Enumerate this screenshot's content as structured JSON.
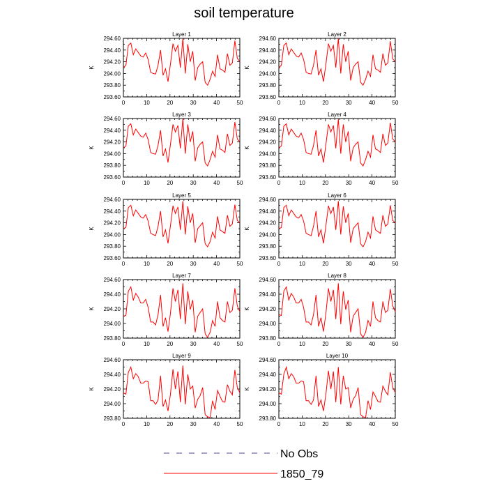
{
  "title": "soil temperature",
  "colors": {
    "series": "#ff0000",
    "obs": "#4a4a9a"
  },
  "legend": {
    "placement": "bottom",
    "entries": [
      {
        "label": "No Obs",
        "style": "dashed",
        "color": "#4a4a9a"
      },
      {
        "label": "1850_79",
        "style": "solid",
        "color": "#ff0000"
      }
    ]
  },
  "chart_data": [
    {
      "type": "line",
      "title": "Layer 1",
      "ylabel": "K",
      "xlim": [
        0,
        50
      ],
      "ylim": [
        293.6,
        294.6
      ],
      "xticks": [
        0,
        10,
        20,
        30,
        40,
        50
      ],
      "yticks": [
        293.6,
        293.8,
        294.0,
        294.2,
        294.4,
        294.6
      ],
      "xtick_labels": [
        "0",
        "10",
        "20",
        "30",
        "40",
        "50"
      ],
      "ytick_labels": [
        "293.60",
        "293.80",
        "294.00",
        "294.20",
        "294.40",
        "294.60"
      ],
      "series": [
        {
          "values": [
            294.1,
            294.14,
            294.48,
            294.52,
            294.32,
            294.42,
            294.36,
            294.3,
            294.28,
            294.35,
            294.24,
            294.02,
            294.0,
            293.99,
            294.14,
            294.4,
            293.97,
            294.08,
            293.86,
            294.16,
            294.51,
            294.38,
            294.48,
            294.1,
            294.6,
            294.0,
            294.5,
            294.2,
            294.38,
            293.88,
            294.1,
            294.16,
            294.2,
            293.85,
            293.8,
            293.9,
            294.04,
            293.95,
            294.32,
            294.08,
            294.06,
            294.02,
            294.34,
            294.14,
            294.18,
            294.56,
            294.26,
            294.2
          ]
        }
      ]
    },
    {
      "type": "line",
      "title": "Layer 2",
      "ylabel": "K",
      "xlim": [
        0,
        50
      ],
      "ylim": [
        293.6,
        294.6
      ],
      "xticks": [
        0,
        10,
        20,
        30,
        40,
        50
      ],
      "yticks": [
        293.6,
        293.8,
        294.0,
        294.2,
        294.4,
        294.6
      ],
      "xtick_labels": [
        "0",
        "10",
        "20",
        "30",
        "40",
        "50"
      ],
      "ytick_labels": [
        "293.60",
        "293.80",
        "294.00",
        "294.20",
        "294.40",
        "294.60"
      ],
      "series": [
        {
          "values": [
            294.1,
            294.14,
            294.48,
            294.52,
            294.32,
            294.42,
            294.36,
            294.3,
            294.28,
            294.35,
            294.24,
            294.02,
            294.0,
            293.99,
            294.14,
            294.4,
            293.97,
            294.08,
            293.86,
            294.16,
            294.51,
            294.38,
            294.48,
            294.1,
            294.6,
            294.0,
            294.5,
            294.2,
            294.38,
            293.88,
            294.1,
            294.16,
            294.2,
            293.85,
            293.8,
            293.9,
            294.04,
            293.95,
            294.32,
            294.08,
            294.06,
            294.02,
            294.34,
            294.14,
            294.18,
            294.55,
            294.25,
            294.2
          ]
        }
      ]
    },
    {
      "type": "line",
      "title": "Layer 3",
      "ylabel": "K",
      "xlim": [
        0,
        50
      ],
      "ylim": [
        293.6,
        294.6
      ],
      "xticks": [
        0,
        10,
        20,
        30,
        40,
        50
      ],
      "yticks": [
        293.6,
        293.8,
        294.0,
        294.2,
        294.4,
        294.6
      ],
      "xtick_labels": [
        "0",
        "10",
        "20",
        "30",
        "40",
        "50"
      ],
      "ytick_labels": [
        "293.60",
        "293.80",
        "294.00",
        "294.20",
        "294.40",
        "294.60"
      ],
      "series": [
        {
          "values": [
            294.1,
            294.13,
            294.47,
            294.51,
            294.32,
            294.42,
            294.36,
            294.3,
            294.28,
            294.35,
            294.24,
            294.02,
            294.0,
            293.99,
            294.14,
            294.4,
            293.96,
            294.08,
            293.85,
            294.16,
            294.5,
            294.37,
            294.48,
            294.09,
            294.6,
            294.0,
            294.5,
            294.2,
            294.38,
            293.87,
            294.1,
            294.16,
            294.2,
            293.84,
            293.79,
            293.9,
            294.04,
            293.94,
            294.32,
            294.08,
            294.06,
            294.02,
            294.34,
            294.14,
            294.18,
            294.54,
            294.25,
            294.2
          ]
        }
      ]
    },
    {
      "type": "line",
      "title": "Layer 4",
      "ylabel": "K",
      "xlim": [
        0,
        50
      ],
      "ylim": [
        293.6,
        294.6
      ],
      "xticks": [
        0,
        10,
        20,
        30,
        40,
        50
      ],
      "yticks": [
        293.6,
        293.8,
        294.0,
        294.2,
        294.4,
        294.6
      ],
      "xtick_labels": [
        "0",
        "10",
        "20",
        "30",
        "40",
        "50"
      ],
      "ytick_labels": [
        "293.60",
        "293.80",
        "294.00",
        "294.20",
        "294.40",
        "294.60"
      ],
      "series": [
        {
          "values": [
            294.1,
            294.13,
            294.47,
            294.51,
            294.32,
            294.42,
            294.36,
            294.3,
            294.28,
            294.35,
            294.24,
            294.02,
            294.0,
            293.99,
            294.14,
            294.4,
            293.96,
            294.08,
            293.85,
            294.16,
            294.5,
            294.37,
            294.48,
            294.09,
            294.59,
            294.0,
            294.5,
            294.2,
            294.38,
            293.87,
            294.1,
            294.16,
            294.2,
            293.84,
            293.79,
            293.9,
            294.04,
            293.94,
            294.32,
            294.08,
            294.06,
            294.02,
            294.34,
            294.14,
            294.18,
            294.53,
            294.25,
            294.2
          ]
        }
      ]
    },
    {
      "type": "line",
      "title": "Layer 5",
      "ylabel": "K",
      "xlim": [
        0,
        50
      ],
      "ylim": [
        293.6,
        294.6
      ],
      "xticks": [
        0,
        10,
        20,
        30,
        40,
        50
      ],
      "yticks": [
        293.6,
        293.8,
        294.0,
        294.2,
        294.4,
        294.6
      ],
      "xtick_labels": [
        "0",
        "10",
        "20",
        "30",
        "40",
        "50"
      ],
      "ytick_labels": [
        "293.60",
        "293.80",
        "294.00",
        "294.20",
        "294.40",
        "294.60"
      ],
      "series": [
        {
          "values": [
            294.1,
            294.12,
            294.46,
            294.5,
            294.32,
            294.42,
            294.36,
            294.3,
            294.28,
            294.34,
            294.23,
            294.02,
            294.0,
            293.98,
            294.14,
            294.4,
            293.96,
            294.08,
            293.85,
            294.15,
            294.49,
            294.36,
            294.47,
            294.08,
            294.57,
            294.0,
            294.48,
            294.2,
            294.36,
            293.86,
            294.1,
            294.15,
            294.2,
            293.84,
            293.79,
            293.88,
            294.04,
            293.94,
            294.31,
            294.08,
            294.05,
            294.02,
            294.33,
            294.14,
            294.18,
            294.51,
            294.24,
            294.2
          ]
        }
      ]
    },
    {
      "type": "line",
      "title": "Layer 6",
      "ylabel": "K",
      "xlim": [
        0,
        50
      ],
      "ylim": [
        293.6,
        294.6
      ],
      "xticks": [
        0,
        10,
        20,
        30,
        40,
        50
      ],
      "yticks": [
        293.6,
        293.8,
        294.0,
        294.2,
        294.4,
        294.6
      ],
      "xtick_labels": [
        "0",
        "10",
        "20",
        "30",
        "40",
        "50"
      ],
      "ytick_labels": [
        "293.60",
        "293.80",
        "294.00",
        "294.20",
        "294.40",
        "294.60"
      ],
      "series": [
        {
          "values": [
            294.1,
            294.12,
            294.46,
            294.5,
            294.32,
            294.42,
            294.36,
            294.3,
            294.28,
            294.34,
            294.23,
            294.02,
            294.0,
            293.98,
            294.14,
            294.4,
            293.96,
            294.08,
            293.85,
            294.15,
            294.49,
            294.36,
            294.47,
            294.08,
            294.57,
            294.0,
            294.48,
            294.2,
            294.36,
            293.86,
            294.1,
            294.15,
            294.2,
            293.84,
            293.79,
            293.88,
            294.04,
            293.94,
            294.31,
            294.08,
            294.05,
            294.02,
            294.33,
            294.14,
            294.18,
            294.5,
            294.24,
            294.2
          ]
        }
      ]
    },
    {
      "type": "line",
      "title": "Layer 7",
      "ylabel": "K",
      "xlim": [
        0,
        50
      ],
      "ylim": [
        293.8,
        294.6
      ],
      "xticks": [
        0,
        10,
        20,
        30,
        40,
        50
      ],
      "yticks": [
        293.8,
        294.0,
        294.2,
        294.4,
        294.6
      ],
      "xtick_labels": [
        "0",
        "10",
        "20",
        "30",
        "40",
        "50"
      ],
      "ytick_labels": [
        "293.80",
        "294.00",
        "294.20",
        "294.40",
        "294.60"
      ],
      "series": [
        {
          "values": [
            294.1,
            294.11,
            294.44,
            294.5,
            294.32,
            294.41,
            294.36,
            294.28,
            294.28,
            294.33,
            294.22,
            294.02,
            294.02,
            293.98,
            294.12,
            294.39,
            293.96,
            294.08,
            293.89,
            294.14,
            294.48,
            294.3,
            294.46,
            294.06,
            294.55,
            293.99,
            294.44,
            294.19,
            294.32,
            293.88,
            294.1,
            294.15,
            294.2,
            293.86,
            293.81,
            293.88,
            294.04,
            293.96,
            294.3,
            294.08,
            294.04,
            294.02,
            294.3,
            294.15,
            294.18,
            294.48,
            294.24,
            294.16
          ]
        }
      ]
    },
    {
      "type": "line",
      "title": "Layer 8",
      "ylabel": "K",
      "xlim": [
        0,
        50
      ],
      "ylim": [
        293.8,
        294.6
      ],
      "xticks": [
        0,
        10,
        20,
        30,
        40,
        50
      ],
      "yticks": [
        293.8,
        294.0,
        294.2,
        294.4,
        294.6
      ],
      "xtick_labels": [
        "0",
        "10",
        "20",
        "30",
        "40",
        "50"
      ],
      "ytick_labels": [
        "293.80",
        "294.00",
        "294.20",
        "294.40",
        "294.60"
      ],
      "series": [
        {
          "values": [
            294.12,
            294.11,
            294.44,
            294.5,
            294.32,
            294.41,
            294.36,
            294.28,
            294.28,
            294.33,
            294.22,
            294.02,
            294.02,
            293.98,
            294.12,
            294.39,
            293.96,
            294.08,
            293.89,
            294.14,
            294.48,
            294.3,
            294.46,
            294.06,
            294.55,
            293.99,
            294.44,
            294.19,
            294.32,
            293.88,
            294.1,
            294.15,
            294.2,
            293.86,
            293.81,
            293.88,
            294.04,
            293.96,
            294.3,
            294.08,
            294.04,
            294.02,
            294.3,
            294.15,
            294.18,
            294.47,
            294.24,
            294.16
          ]
        }
      ]
    },
    {
      "type": "line",
      "title": "Layer 9",
      "ylabel": "K",
      "xlim": [
        0,
        50
      ],
      "ylim": [
        293.8,
        294.6
      ],
      "xticks": [
        0,
        10,
        20,
        30,
        40,
        50
      ],
      "yticks": [
        293.8,
        294.0,
        294.2,
        294.4,
        294.6
      ],
      "xtick_labels": [
        "0",
        "10",
        "20",
        "30",
        "40",
        "50"
      ],
      "ytick_labels": [
        "293.80",
        "294.00",
        "294.20",
        "294.40",
        "294.60"
      ],
      "series": [
        {
          "values": [
            294.15,
            294.13,
            294.43,
            294.5,
            294.34,
            294.41,
            294.37,
            294.28,
            294.28,
            294.31,
            294.3,
            294.04,
            294.04,
            293.99,
            294.05,
            294.38,
            293.96,
            294.05,
            293.9,
            294.13,
            294.47,
            294.2,
            294.44,
            294.02,
            294.52,
            293.99,
            294.4,
            294.2,
            294.24,
            293.94,
            294.06,
            294.11,
            294.22,
            293.85,
            293.82,
            293.81,
            294.04,
            293.92,
            294.18,
            294.1,
            294.03,
            294.02,
            294.26,
            294.17,
            294.12,
            294.46,
            294.22,
            294.15
          ]
        }
      ]
    },
    {
      "type": "line",
      "title": "Layer 10",
      "ylabel": "K",
      "xlim": [
        0,
        50
      ],
      "ylim": [
        293.8,
        294.6
      ],
      "xticks": [
        0,
        10,
        20,
        30,
        40,
        50
      ],
      "yticks": [
        293.8,
        294.0,
        294.2,
        294.4,
        294.6
      ],
      "xtick_labels": [
        "0",
        "10",
        "20",
        "30",
        "40",
        "50"
      ],
      "ytick_labels": [
        "293.80",
        "294.00",
        "294.20",
        "294.40",
        "294.60"
      ],
      "series": [
        {
          "values": [
            294.15,
            294.13,
            294.4,
            294.5,
            294.34,
            294.41,
            294.37,
            294.28,
            294.28,
            294.31,
            294.3,
            294.04,
            294.04,
            293.99,
            294.05,
            294.38,
            293.96,
            294.05,
            293.9,
            294.13,
            294.45,
            294.2,
            294.44,
            294.02,
            294.5,
            293.99,
            294.38,
            294.2,
            294.22,
            293.94,
            294.06,
            294.11,
            294.22,
            293.85,
            293.82,
            293.81,
            294.04,
            293.92,
            294.16,
            294.1,
            294.03,
            294.02,
            294.24,
            294.17,
            294.12,
            294.43,
            294.22,
            294.15
          ]
        }
      ]
    }
  ]
}
